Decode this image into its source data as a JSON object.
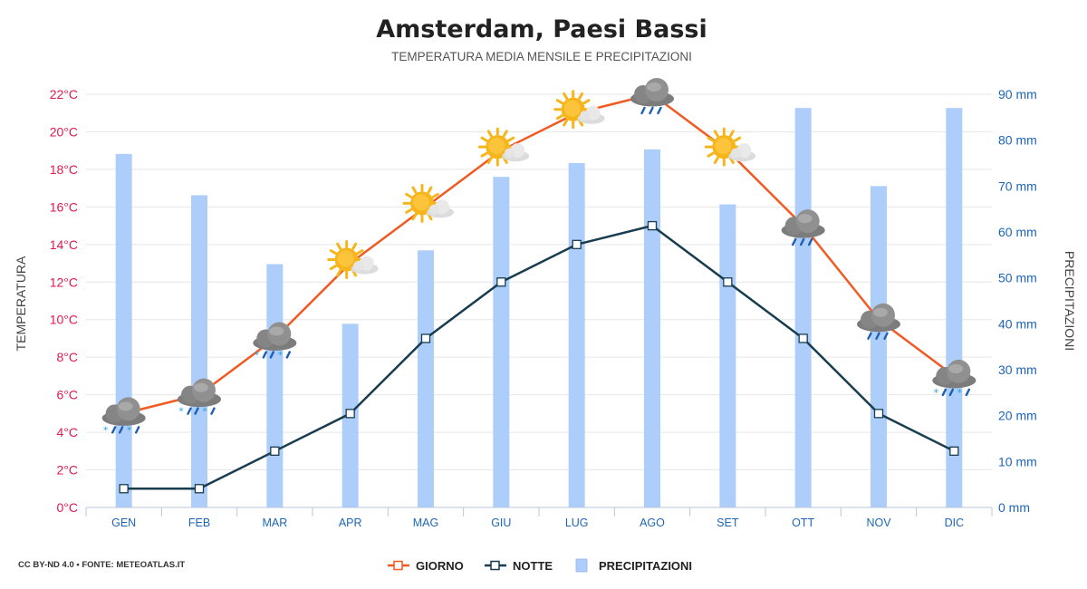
{
  "chart_data": {
    "type": "line+bar",
    "title": "Amsterdam, Paesi Bassi",
    "subtitle": "TEMPERATURA MEDIA MENSILE E PRECIPITAZIONI",
    "categories": [
      "GEN",
      "FEB",
      "MAR",
      "APR",
      "MAG",
      "GIU",
      "LUG",
      "AGO",
      "SET",
      "OTT",
      "NOV",
      "DIC"
    ],
    "ylabel_left": "TEMPERATURA",
    "ylabel_right": "PRECIPITAZIONI",
    "yticks_left": [
      "0°C",
      "2°C",
      "4°C",
      "6°C",
      "8°C",
      "10°C",
      "12°C",
      "14°C",
      "16°C",
      "18°C",
      "20°C",
      "22°C"
    ],
    "yticks_right": [
      "0 mm",
      "10 mm",
      "20 mm",
      "30 mm",
      "40 mm",
      "50 mm",
      "60 mm",
      "70 mm",
      "80 mm",
      "90 mm"
    ],
    "ylim_left": [
      0,
      22
    ],
    "ylim_right": [
      0,
      90
    ],
    "grid": true,
    "legend_position": "bottom-center",
    "series": [
      {
        "name": "GIORNO",
        "kind": "line",
        "axis": "left",
        "color": "#f15a22",
        "values": [
          5,
          6,
          9,
          13,
          16,
          19,
          21,
          22,
          19,
          15,
          10,
          7
        ]
      },
      {
        "name": "NOTTE",
        "kind": "line",
        "axis": "left",
        "color": "#173d4f",
        "values": [
          1,
          1,
          3,
          5,
          9,
          12,
          14,
          15,
          12,
          9,
          5,
          3
        ]
      },
      {
        "name": "PRECIPITAZIONI",
        "kind": "bar",
        "axis": "right",
        "color": "#adcdfb",
        "values": [
          77,
          68,
          53,
          40,
          56,
          72,
          75,
          78,
          66,
          87,
          70,
          87
        ]
      }
    ],
    "weather_icons": [
      "cloud-snow-rain",
      "cloud-snow-rain",
      "cloud-snow-rain",
      "sun-cloud",
      "sun-cloud",
      "sun-cloud",
      "sun-cloud",
      "cloud-rain",
      "sun-cloud",
      "cloud-rain",
      "cloud-rain",
      "cloud-snow-rain"
    ]
  },
  "credit": "CC BY-ND 4.0 • FONTE: METEOATLAS.IT"
}
